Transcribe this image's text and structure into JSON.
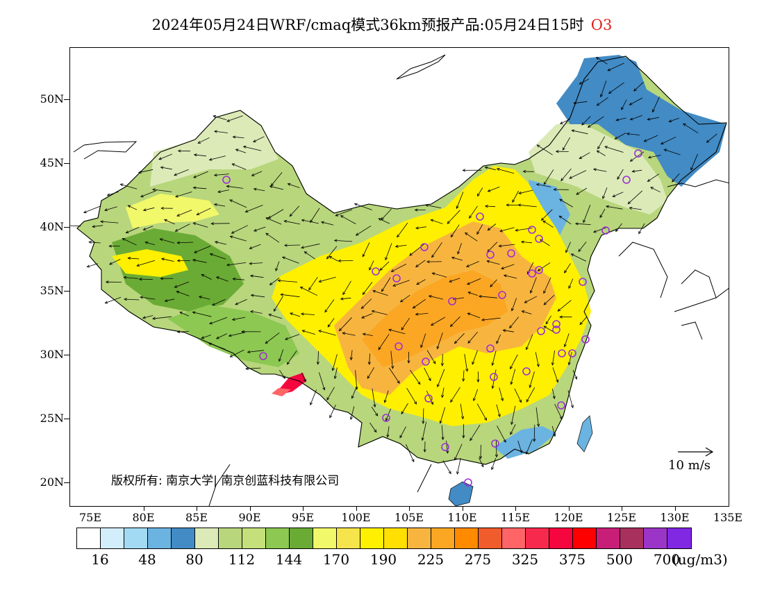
{
  "header": {
    "title": "2024年05月24日WRF/cmaq模式36km预报产品:05月24日15时",
    "species": "O3",
    "species_color": "#e0201c"
  },
  "map": {
    "lat_labels": [
      "50N",
      "45N",
      "40N",
      "35N",
      "30N",
      "25N",
      "20N"
    ],
    "lon_labels": [
      "75E",
      "80E",
      "85E",
      "90E",
      "95E",
      "100E",
      "105E",
      "110E",
      "115E",
      "120E",
      "125E",
      "130E",
      "135E"
    ],
    "copyright": "版权所有: 南京大学| 南京创蓝科技有限公司",
    "wind_reference": "10 m/s",
    "station_marker_color": "#9b2fd6"
  },
  "legend": {
    "colors": [
      "#ffffff",
      "#d3eefb",
      "#a3daf3",
      "#6bb3e0",
      "#428bc4",
      "#dceab8",
      "#b8d67c",
      "#c5e07a",
      "#8dc852",
      "#6aab35",
      "#f1f86a",
      "#f5e44c",
      "#fff000",
      "#ffe000",
      "#f7b540",
      "#fba724",
      "#ff8a00",
      "#f05c2c",
      "#ff6467",
      "#f72a4e",
      "#f5063f",
      "#ff0000",
      "#c81e78",
      "#a8305c",
      "#9b35c8",
      "#8128e2"
    ],
    "labels": [
      "16",
      "48",
      "80",
      "112",
      "144",
      "170",
      "190",
      "225",
      "275",
      "325",
      "375",
      "500",
      "700"
    ],
    "unit": "(ug/m3)"
  }
}
